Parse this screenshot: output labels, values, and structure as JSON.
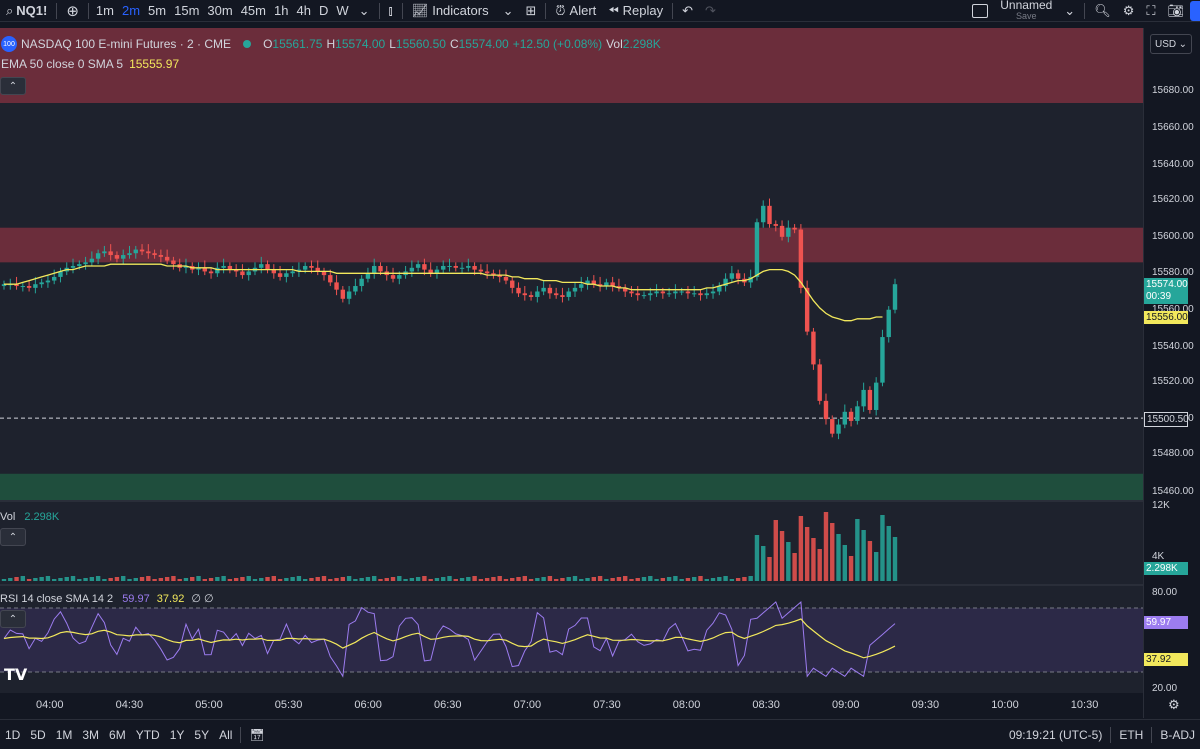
{
  "topbar": {
    "symbol": "NQ1!",
    "intervals": [
      "1m",
      "2m",
      "5m",
      "15m",
      "30m",
      "45m",
      "1h",
      "4h",
      "D",
      "W"
    ],
    "active_interval": "2m",
    "indicators_label": "Indicators",
    "alert_label": "Alert",
    "replay_label": "Replay",
    "layout_name": "Unnamed",
    "layout_save": "Save"
  },
  "legend": {
    "title": "NASDAQ 100 E-mini Futures · 2 · CME",
    "open_label": "O",
    "open": "15561.75",
    "high_label": "H",
    "high": "15574.00",
    "low_label": "L",
    "low": "15560.50",
    "close_label": "C",
    "close": "15574.00",
    "change": "+12.50 (+0.08%)",
    "vol_label": "Vol",
    "vol": "2.298K",
    "ema_label": "EMA 50 close 0 SMA 5",
    "ema_value": "15555.97"
  },
  "currency": "USD",
  "price_axis": {
    "ticks": [
      "15680.00",
      "15660.00",
      "15640.00",
      "15620.00",
      "15600.00",
      "15580.00",
      "15560.00",
      "15540.00",
      "15520.00",
      "15500.00",
      "15480.00",
      "15460.00"
    ],
    "last_price": "15574.00",
    "countdown": "00:39",
    "ema_tag": "15556.00",
    "marker_tag": "15500.50"
  },
  "volume": {
    "label": "Vol",
    "value": "2.298K",
    "ticks": [
      "12K",
      "4K"
    ],
    "tag": "2.298K"
  },
  "rsi": {
    "label": "RSI 14 close SMA 14 2",
    "value": "59.97",
    "sma_value": "37.92",
    "extra": "∅ ∅",
    "ticks": [
      "80.00",
      "20.00"
    ],
    "tag_rsi": "59.97",
    "tag_sma": "37.92"
  },
  "time_axis": [
    "04:00",
    "04:30",
    "05:00",
    "05:30",
    "06:00",
    "06:30",
    "07:00",
    "07:30",
    "08:00",
    "08:30",
    "09:00",
    "09:30",
    "10:00",
    "10:30"
  ],
  "bottombar": {
    "ranges": [
      "1D",
      "5D",
      "1M",
      "3M",
      "6M",
      "YTD",
      "1Y",
      "5Y",
      "All"
    ],
    "clock": "09:19:21 (UTC-5)",
    "session": "ETH",
    "adjust": "B-ADJ"
  },
  "colors": {
    "up": "#26a69a",
    "down": "#ef5350",
    "ema": "#f2e85c",
    "rsi": "#9c7cf0",
    "rsi_sma": "#f2e85c",
    "zone_red": "#6b2d3b",
    "zone_green": "#1f4e3d"
  },
  "chart_data": {
    "type": "candlestick",
    "close_series": [
      15574,
      15574,
      15573,
      15573,
      15572,
      15574,
      15575,
      15576,
      15578,
      15581,
      15583,
      15584,
      15585,
      15586,
      15588,
      15591,
      15592,
      15590,
      15588,
      15590,
      15591,
      15593,
      15592,
      15591,
      15590,
      15589,
      15587,
      15585,
      15583,
      15584,
      15582,
      15583,
      15581,
      15580,
      15583,
      15584,
      15582,
      15581,
      15579,
      15581,
      15583,
      15585,
      15582,
      15580,
      15578,
      15580,
      15581,
      15582,
      15584,
      15583,
      15581,
      15579,
      15575,
      15571,
      15566,
      15570,
      15573,
      15577,
      15580,
      15584,
      15581,
      15579,
      15577,
      15579,
      15581,
      15583,
      15585,
      15582,
      15580,
      15582,
      15584,
      15584,
      15583,
      15583,
      15584,
      15582,
      15581,
      15580,
      15579,
      15578,
      15576,
      15572,
      15569,
      15568,
      15567,
      15570,
      15572,
      15569,
      15568,
      15567,
      15570,
      15572,
      15574,
      15576,
      15574,
      15573,
      15575,
      15573,
      15572,
      15570,
      15569,
      15568,
      15568,
      15569,
      15570,
      15569,
      15569,
      15570,
      15570,
      15569,
      15569,
      15568,
      15569,
      15570,
      15573,
      15577,
      15580,
      15577,
      15575,
      15578,
      15608,
      15617,
      15607,
      15606,
      15600,
      15605,
      15604,
      15572,
      15548,
      15530,
      15510,
      15500,
      15492,
      15497,
      15504,
      15499,
      15507,
      15516,
      15505,
      15520,
      15545,
      15560,
      15574
    ],
    "ema_series": [
      15574,
      15574,
      15574,
      15575,
      15576,
      15577,
      15578,
      15579,
      15580,
      15581,
      15582,
      15582,
      15583,
      15584,
      15584,
      15584,
      15584,
      15585,
      15585,
      15585,
      15585,
      15585,
      15585,
      15585,
      15585,
      15585,
      15584,
      15584,
      15584,
      15584,
      15583,
      15583,
      15583,
      15583,
      15582,
      15582,
      15582,
      15582,
      15582,
      15582,
      15582,
      15582,
      15582,
      15582,
      15582,
      15582,
      15582,
      15581,
      15581,
      15581,
      15581,
      15581,
      15581,
      15580,
      15580,
      15580,
      15580,
      15580,
      15580,
      15580,
      15580,
      15580,
      15580,
      15580,
      15580,
      15580,
      15580,
      15580,
      15580,
      15580,
      15580,
      15580,
      15580,
      15580,
      15580,
      15580,
      15580,
      15579,
      15579,
      15579,
      15579,
      15578,
      15578,
      15577,
      15577,
      15577,
      15576,
      15576,
      15576,
      15575,
      15575,
      15575,
      15575,
      15574,
      15574,
      15573,
      15573,
      15573,
      15572,
      15572,
      15571,
      15571,
      15571,
      15571,
      15571,
      15571,
      15571,
      15571,
      15571,
      15571,
      15571,
      15571,
      15572,
      15572,
      15573,
      15574,
      15575,
      15576,
      15576,
      15577,
      15579,
      15581,
      15582,
      15582,
      15582,
      15581,
      15579,
      15575,
      15570,
      15565,
      15561,
      15558,
      15556,
      15555,
      15554,
      15554,
      15555,
      15555,
      15555,
      15556,
      15556
    ]
  }
}
